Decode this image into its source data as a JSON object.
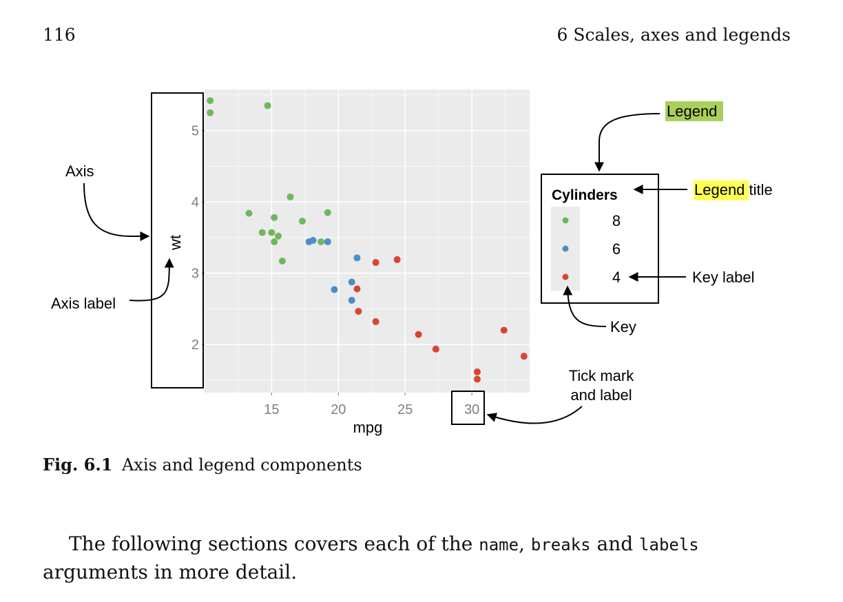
{
  "header": {
    "page_number": "116",
    "running_head": "6  Scales, axes and legends"
  },
  "figure": {
    "annotations": {
      "legend": "Legend",
      "legend_title_highlight": "Legend",
      "legend_title_rest": " title",
      "axis": "Axis",
      "axis_label": "Axis label",
      "key_label": "Key label",
      "key": "Key",
      "tick_mark_line1": "Tick mark",
      "tick_mark_line2": "and label"
    },
    "highlight_colors": {
      "legend": "#a9d05c",
      "legend_title": "#ffff55"
    }
  },
  "chart_data": {
    "type": "scatter",
    "xlabel": "mpg",
    "ylabel": "wt",
    "xlim": [
      10.4,
      33.9
    ],
    "ylim": [
      1.5,
      5.4
    ],
    "xticks": [
      15,
      20,
      25,
      30
    ],
    "yticks": [
      2,
      3,
      4,
      5
    ],
    "grid": true,
    "panel_background": "#ebebeb",
    "legend": {
      "title": "Cylinders",
      "placement": "right"
    },
    "series": [
      {
        "name": "8",
        "color": "#6fb75d",
        "points": [
          [
            10.4,
            5.25
          ],
          [
            10.4,
            5.42
          ],
          [
            14.7,
            5.35
          ],
          [
            13.3,
            3.84
          ],
          [
            14.3,
            3.57
          ],
          [
            15.0,
            3.57
          ],
          [
            15.2,
            3.78
          ],
          [
            15.2,
            3.44
          ],
          [
            15.5,
            3.52
          ],
          [
            15.8,
            3.17
          ],
          [
            16.4,
            4.07
          ],
          [
            17.3,
            3.73
          ],
          [
            18.7,
            3.44
          ],
          [
            19.2,
            3.85
          ]
        ]
      },
      {
        "name": "6",
        "color": "#4b8ec8",
        "points": [
          [
            17.8,
            3.44
          ],
          [
            18.1,
            3.46
          ],
          [
            19.2,
            3.44
          ],
          [
            19.7,
            2.77
          ],
          [
            21.0,
            2.62
          ],
          [
            21.0,
            2.875
          ],
          [
            21.4,
            3.215
          ]
        ]
      },
      {
        "name": "4",
        "color": "#d94532",
        "points": [
          [
            21.4,
            2.78
          ],
          [
            21.5,
            2.465
          ],
          [
            22.8,
            2.32
          ],
          [
            22.8,
            3.15
          ],
          [
            24.4,
            3.19
          ],
          [
            26.0,
            2.14
          ],
          [
            27.3,
            1.935
          ],
          [
            30.4,
            1.615
          ],
          [
            30.4,
            1.513
          ],
          [
            32.4,
            2.2
          ],
          [
            33.9,
            1.835
          ]
        ]
      }
    ]
  },
  "caption": {
    "label": "Fig. 6.1",
    "text": "Axis and legend components"
  },
  "body": {
    "part1": "The following sections covers each of the ",
    "code1": "name",
    "part2": ", ",
    "code2": "breaks",
    "part3": " and ",
    "code3": "labels",
    "part4": " arguments in more detail."
  }
}
